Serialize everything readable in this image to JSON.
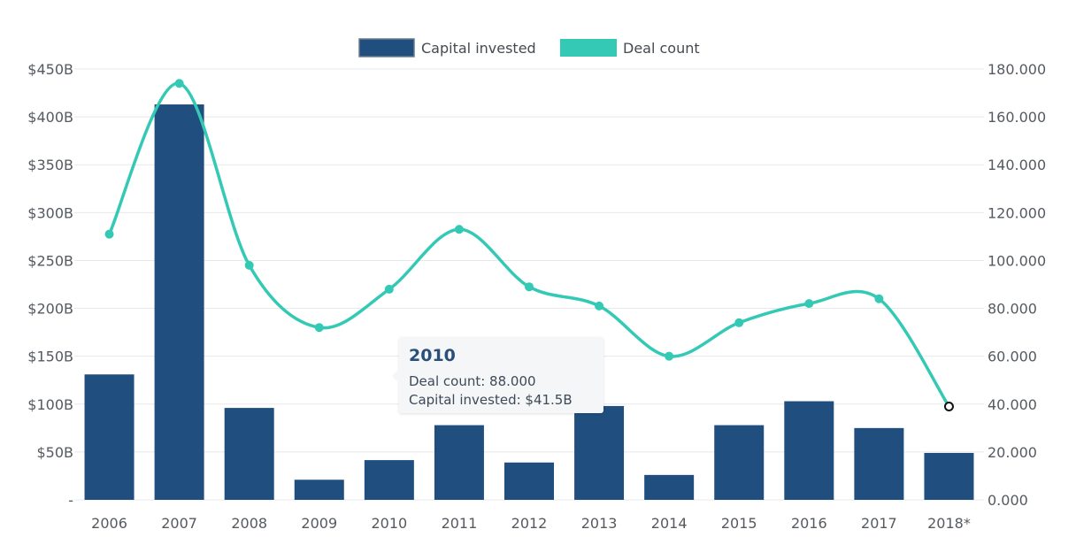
{
  "chart_data": {
    "type": "bar",
    "categories": [
      "2006",
      "2007",
      "2008",
      "2009",
      "2010",
      "2011",
      "2012",
      "2013",
      "2014",
      "2015",
      "2016",
      "2017",
      "2018*"
    ],
    "series": [
      {
        "name": "Capital invested",
        "type": "bar",
        "axis": "left",
        "color": "#1f4e7f",
        "values": [
          131,
          413,
          96,
          21,
          41.5,
          78,
          39,
          98,
          26,
          78,
          103,
          75,
          49
        ]
      },
      {
        "name": "Deal count",
        "type": "line",
        "axis": "right",
        "color": "#34c9b5",
        "values": [
          111,
          174,
          98,
          72,
          88,
          113,
          89,
          81,
          60,
          74,
          82,
          84,
          39
        ]
      }
    ],
    "y_left": {
      "min": 0,
      "max": 450,
      "ticks": [
        {
          "v": 0,
          "label": "-"
        },
        {
          "v": 50,
          "label": "$50B"
        },
        {
          "v": 100,
          "label": "$100B"
        },
        {
          "v": 150,
          "label": "$150B"
        },
        {
          "v": 200,
          "label": "$200B"
        },
        {
          "v": 250,
          "label": "$250B"
        },
        {
          "v": 300,
          "label": "$300B"
        },
        {
          "v": 350,
          "label": "$350B"
        },
        {
          "v": 400,
          "label": "$400B"
        },
        {
          "v": 450,
          "label": "$450B"
        }
      ]
    },
    "y_right": {
      "min": 0,
      "max": 180,
      "ticks": [
        {
          "v": 0,
          "label": "0.000"
        },
        {
          "v": 20,
          "label": "20.000"
        },
        {
          "v": 40,
          "label": "40.000"
        },
        {
          "v": 60,
          "label": "60.000"
        },
        {
          "v": 80,
          "label": "80.000"
        },
        {
          "v": 100,
          "label": "100.000"
        },
        {
          "v": 120,
          "label": "120.000"
        },
        {
          "v": 140,
          "label": "140.000"
        },
        {
          "v": 160,
          "label": "160.000"
        },
        {
          "v": 180,
          "label": "180.000"
        }
      ]
    },
    "grid": true,
    "legend_position": "top-center",
    "legend": [
      {
        "label": "Capital invested",
        "color": "#1f4e7f"
      },
      {
        "label": "Deal count",
        "color": "#34c9b5"
      }
    ],
    "highlighted_point": "2018*",
    "tooltip": {
      "title": "2010",
      "line1": "Deal count: 88.000",
      "line2": "Capital invested: $41.5B"
    }
  }
}
